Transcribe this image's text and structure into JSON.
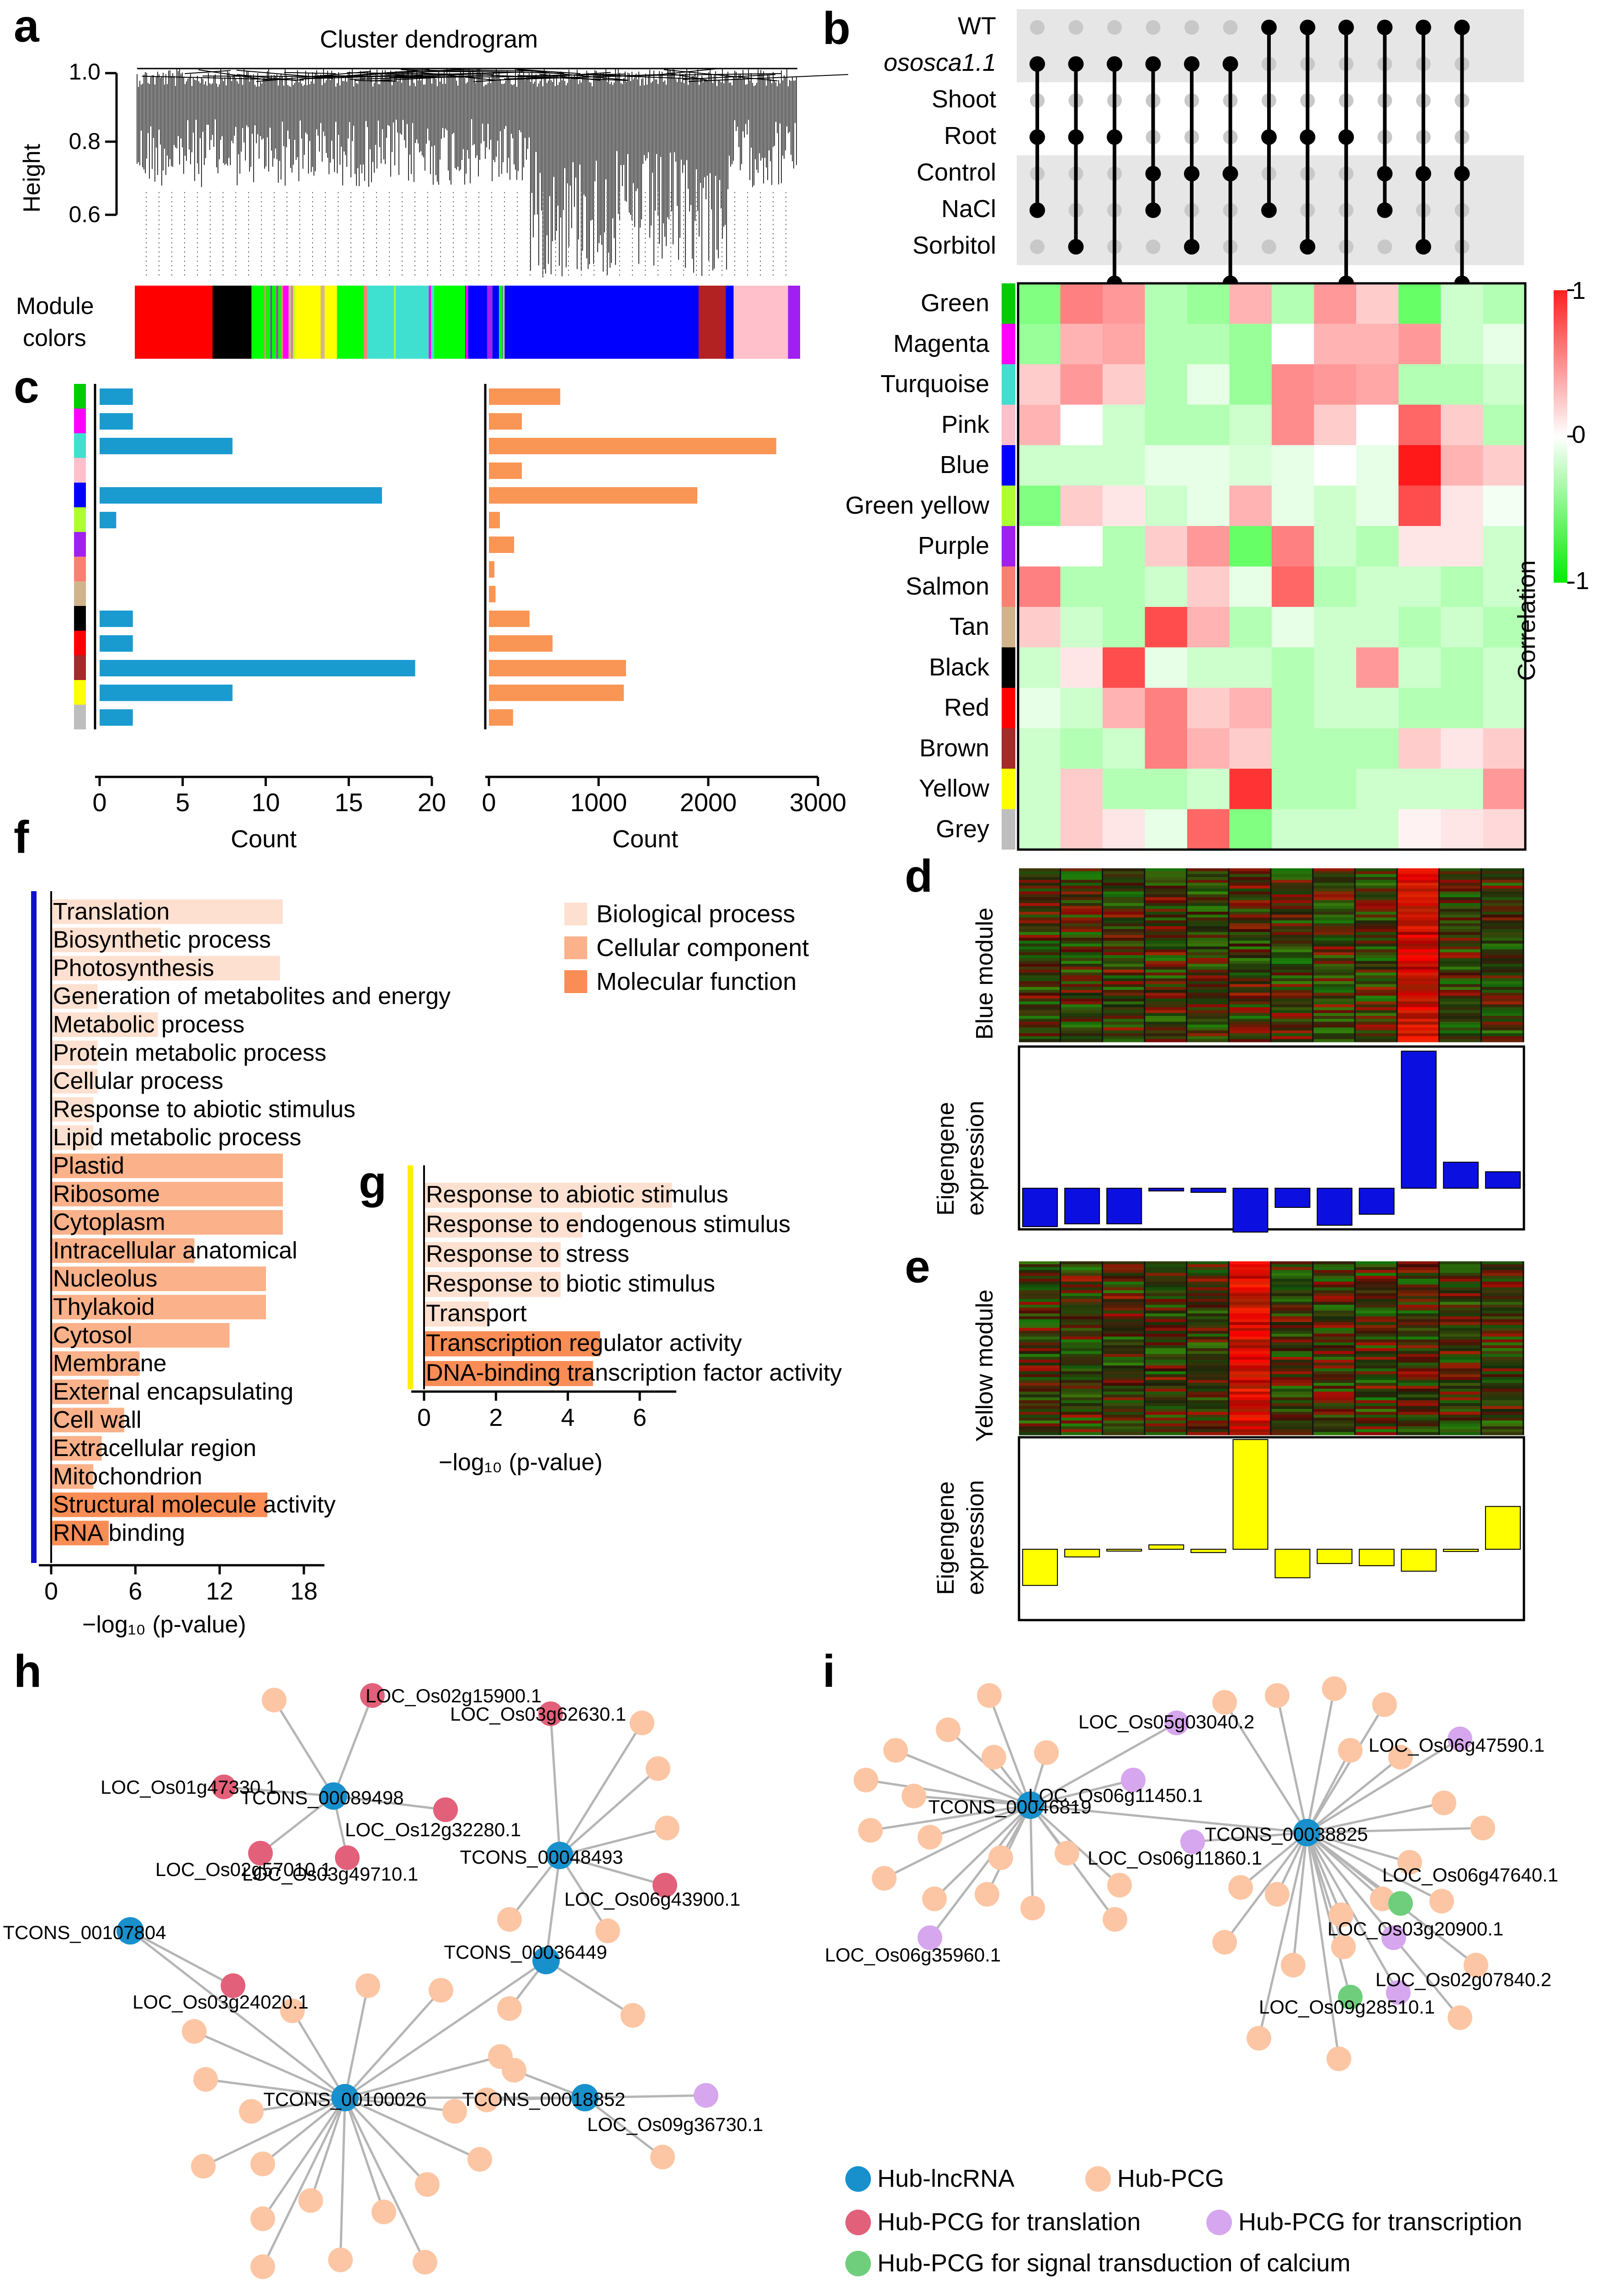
{
  "panel_labels": {
    "a": "a",
    "b": "b",
    "c": "c",
    "d": "d",
    "e": "e",
    "f": "f",
    "g": "g",
    "h": "h",
    "i": "i"
  },
  "panel_a": {
    "title": "Cluster dendrogram",
    "ylabel": "Height",
    "yticks": [
      "1.0",
      "0.8",
      "0.6"
    ],
    "module_label_1": "Module",
    "module_label_2": "colors",
    "module_colors": [
      "#ff0000",
      "#000000",
      "#00ff00",
      "#ff00ff",
      "#ffff00",
      "#00ff00",
      "#40e0d0",
      "#00ff00",
      "#0000ff",
      "#b22222",
      "#0000ff",
      "#ffc0cb",
      "#a020f0"
    ]
  },
  "panel_b": {
    "conditions": [
      "WT",
      "ososca1.1",
      "Shoot",
      "Root",
      "Control",
      "NaCl",
      "Sorbitol"
    ],
    "matrix_columns": [
      [
        1,
        3,
        5
      ],
      [
        1,
        3,
        6
      ],
      [
        1,
        3,
        7
      ],
      [
        1,
        4,
        5
      ],
      [
        1,
        4,
        6
      ],
      [
        1,
        4,
        7
      ],
      [
        0,
        3,
        5
      ],
      [
        0,
        3,
        6
      ],
      [
        0,
        3,
        7
      ],
      [
        0,
        4,
        5
      ],
      [
        0,
        4,
        6
      ],
      [
        0,
        4,
        7
      ]
    ],
    "modules": [
      "Green",
      "Magenta",
      "Turquoise",
      "Pink",
      "Blue",
      "Green yellow",
      "Purple",
      "Salmon",
      "Tan",
      "Black",
      "Red",
      "Brown",
      "Yellow",
      "Grey"
    ],
    "module_colors": [
      "#00cc00",
      "#ff00ff",
      "#40e0d0",
      "#ffc0cb",
      "#0000ff",
      "#adff2f",
      "#a020f0",
      "#fa8072",
      "#d2b48c",
      "#000000",
      "#ff0000",
      "#a52a2a",
      "#ffff00",
      "#bebebe"
    ],
    "colorbar_title": "Correlation",
    "colorbar_ticks": [
      "1",
      "0",
      "-1"
    ],
    "correlations": [
      [
        -0.5,
        0.5,
        0.4,
        -0.3,
        -0.4,
        0.3,
        -0.3,
        0.4,
        0.2,
        -0.6,
        -0.2,
        -0.3
      ],
      [
        -0.4,
        0.3,
        0.35,
        -0.3,
        -0.3,
        -0.4,
        0.0,
        0.3,
        0.3,
        0.4,
        -0.2,
        -0.1
      ],
      [
        0.2,
        0.4,
        0.2,
        -0.3,
        -0.1,
        -0.4,
        0.45,
        0.4,
        0.35,
        -0.3,
        -0.3,
        -0.2
      ],
      [
        0.3,
        0.0,
        -0.2,
        -0.3,
        -0.3,
        -0.2,
        0.45,
        0.2,
        0.0,
        0.6,
        0.2,
        -0.3
      ],
      [
        -0.2,
        -0.2,
        -0.2,
        -0.1,
        -0.1,
        -0.15,
        -0.1,
        0.0,
        -0.1,
        0.9,
        0.3,
        0.2
      ],
      [
        -0.5,
        0.2,
        0.1,
        -0.2,
        -0.1,
        0.3,
        -0.1,
        -0.2,
        -0.1,
        0.7,
        0.1,
        -0.05
      ],
      [
        0.0,
        0.0,
        -0.3,
        0.2,
        0.4,
        -0.6,
        0.5,
        -0.2,
        -0.3,
        0.1,
        0.1,
        -0.2
      ],
      [
        0.5,
        -0.3,
        -0.3,
        -0.2,
        0.2,
        -0.1,
        0.6,
        -0.3,
        -0.2,
        -0.2,
        -0.3,
        -0.2
      ],
      [
        0.2,
        -0.2,
        -0.3,
        0.7,
        0.3,
        -0.3,
        -0.1,
        -0.2,
        -0.2,
        -0.3,
        -0.2,
        -0.3
      ],
      [
        -0.2,
        0.1,
        0.7,
        -0.1,
        -0.2,
        -0.2,
        -0.3,
        -0.2,
        0.4,
        -0.2,
        -0.3,
        -0.2
      ],
      [
        -0.1,
        -0.2,
        0.3,
        0.5,
        0.2,
        0.3,
        -0.3,
        -0.2,
        -0.2,
        -0.3,
        -0.3,
        -0.2
      ],
      [
        -0.2,
        -0.3,
        -0.2,
        0.5,
        0.3,
        0.2,
        -0.3,
        -0.3,
        -0.3,
        0.2,
        0.1,
        0.2
      ],
      [
        -0.2,
        0.2,
        -0.3,
        -0.3,
        -0.2,
        0.8,
        -0.3,
        -0.3,
        -0.2,
        -0.2,
        -0.2,
        0.4
      ],
      [
        -0.2,
        0.2,
        0.1,
        -0.1,
        0.6,
        -0.5,
        -0.2,
        -0.2,
        -0.2,
        0.05,
        0.1,
        0.15
      ]
    ]
  },
  "panel_c": {
    "xlabel": "Count",
    "lnc_ticks": [
      "0",
      "5",
      "10",
      "15",
      "20"
    ],
    "pcg_ticks": [
      "0",
      "1000",
      "2000",
      "3000"
    ],
    "lnc_counts": [
      2,
      2,
      8,
      0,
      17,
      1,
      0,
      0,
      0,
      2,
      2,
      19,
      8,
      2
    ],
    "pcg_counts": [
      650,
      300,
      2620,
      300,
      1900,
      100,
      230,
      50,
      60,
      370,
      580,
      1250,
      1230,
      220
    ]
  },
  "panel_d": {
    "ylabel_top": "Blue module",
    "ylabel_bottom_1": "Eigengene",
    "ylabel_bottom_2": "expression",
    "eigengene": [
      -0.28,
      -0.26,
      -0.26,
      -0.02,
      -0.03,
      -0.32,
      -0.14,
      -0.27,
      -0.19,
      1.0,
      0.19,
      0.12
    ]
  },
  "panel_e": {
    "ylabel_top": "Yellow module",
    "ylabel_bottom_1": "Eigengene",
    "ylabel_bottom_2": "expression",
    "eigengene": [
      -0.33,
      -0.07,
      0.0,
      0.04,
      -0.03,
      1.0,
      -0.26,
      -0.13,
      -0.15,
      -0.2,
      -0.02,
      0.39
    ]
  },
  "panel_f": {
    "xlabel": "−log₁₀ (p-value)",
    "ticks": [
      "0",
      "6",
      "12",
      "18"
    ],
    "legend": [
      "Biological process",
      "Cellular component",
      "Molecular function"
    ],
    "legend_colors": [
      "#fde0d0",
      "#fbb189",
      "#f98d55"
    ],
    "terms": [
      {
        "label": "Translation",
        "value": 16.5,
        "cat": 0
      },
      {
        "label": "Biosynthetic process",
        "value": 7.8,
        "cat": 0
      },
      {
        "label": "Photosynthesis",
        "value": 16.3,
        "cat": 0
      },
      {
        "label": "Generation of metabolites and energy",
        "value": 3.3,
        "cat": 0
      },
      {
        "label": "Metabolic process",
        "value": 7.6,
        "cat": 0
      },
      {
        "label": "Protein metabolic process",
        "value": 3.3,
        "cat": 0
      },
      {
        "label": "Cellular process",
        "value": 3.3,
        "cat": 0
      },
      {
        "label": "Response to abiotic stimulus",
        "value": 3.0,
        "cat": 0
      },
      {
        "label": "Lipid metabolic process",
        "value": 3.0,
        "cat": 0
      },
      {
        "label": "Plastid",
        "value": 16.5,
        "cat": 1
      },
      {
        "label": "Ribosome",
        "value": 16.5,
        "cat": 1
      },
      {
        "label": "Cytoplasm",
        "value": 16.5,
        "cat": 1
      },
      {
        "label": "Intracellular anatomical",
        "value": 10.2,
        "cat": 1
      },
      {
        "label": "Nucleolus",
        "value": 15.3,
        "cat": 1
      },
      {
        "label": "Thylakoid",
        "value": 15.3,
        "cat": 1
      },
      {
        "label": "Cytosol",
        "value": 12.7,
        "cat": 1
      },
      {
        "label": "Membrane",
        "value": 6.3,
        "cat": 1
      },
      {
        "label": "External encapsulating",
        "value": 4.1,
        "cat": 1
      },
      {
        "label": "Cell wall",
        "value": 5.2,
        "cat": 1
      },
      {
        "label": "Extracellular region",
        "value": 3.6,
        "cat": 1
      },
      {
        "label": "Mitochondrion",
        "value": 3.0,
        "cat": 1
      },
      {
        "label": "Structural molecule activity",
        "value": 15.4,
        "cat": 2
      },
      {
        "label": "RNA binding",
        "value": 4.1,
        "cat": 2
      }
    ]
  },
  "panel_g": {
    "xlabel": "−log₁₀ (p-value)",
    "ticks": [
      "0",
      "2",
      "4",
      "6"
    ],
    "terms": [
      {
        "label": "Response to abiotic stimulus",
        "value": 6.9,
        "cat": 0
      },
      {
        "label": "Response to endogenous stimulus",
        "value": 4.4,
        "cat": 0
      },
      {
        "label": "Response to stress",
        "value": 3.8,
        "cat": 0
      },
      {
        "label": "Response to biotic stimulus",
        "value": 3.8,
        "cat": 0
      },
      {
        "label": "Transport",
        "value": 1.8,
        "cat": 0
      },
      {
        "label": "Transcription regulator activity",
        "value": 4.9,
        "cat": 2
      },
      {
        "label": "DNA-binding transcription factor activity",
        "value": 4.7,
        "cat": 2
      }
    ]
  },
  "panel_h": {
    "hub_lncrna": [
      "TCONS_00089498",
      "TCONS_00048493",
      "TCONS_00107804",
      "TCONS_00036449",
      "TCONS_00100026",
      "TCONS_00018852"
    ],
    "labeled_pcg": [
      "LOC_Os02g15900.1",
      "LOC_Os03g62630.1",
      "LOC_Os01g47330.1",
      "LOC_Os12g32280.1",
      "LOC_Os02g57010.1",
      "LOC_Os06g43900.1",
      "LOC_Os03g49710.1",
      "LOC_Os03g24020.1",
      "LOC_Os09g36730.1"
    ]
  },
  "panel_i": {
    "hub_lncrna": [
      "TCONS_00046819",
      "TCONS_00038825"
    ],
    "labeled_pcg": [
      "LOC_Os05g03040.2",
      "LOC_Os06g11450.1",
      "LOC_Os06g47590.1",
      "LOC_Os06g11860.1",
      "LOC_Os06g47640.1",
      "LOC_Os03g20900.1",
      "LOC_Os02g07840.2",
      "LOC_Os06g35960.1",
      "LOC_Os09g28510.1"
    ]
  },
  "network_legend": {
    "items": [
      "Hub-lncRNA",
      "Hub-PCG",
      "Hub-PCG for translation",
      "Hub-PCG for transcription",
      "Hub-PCG for signal transduction of calcium"
    ],
    "colors": [
      "#1890cc",
      "#fcc6a4",
      "#e2607a",
      "#d6a6ee",
      "#6fce7b"
    ]
  }
}
